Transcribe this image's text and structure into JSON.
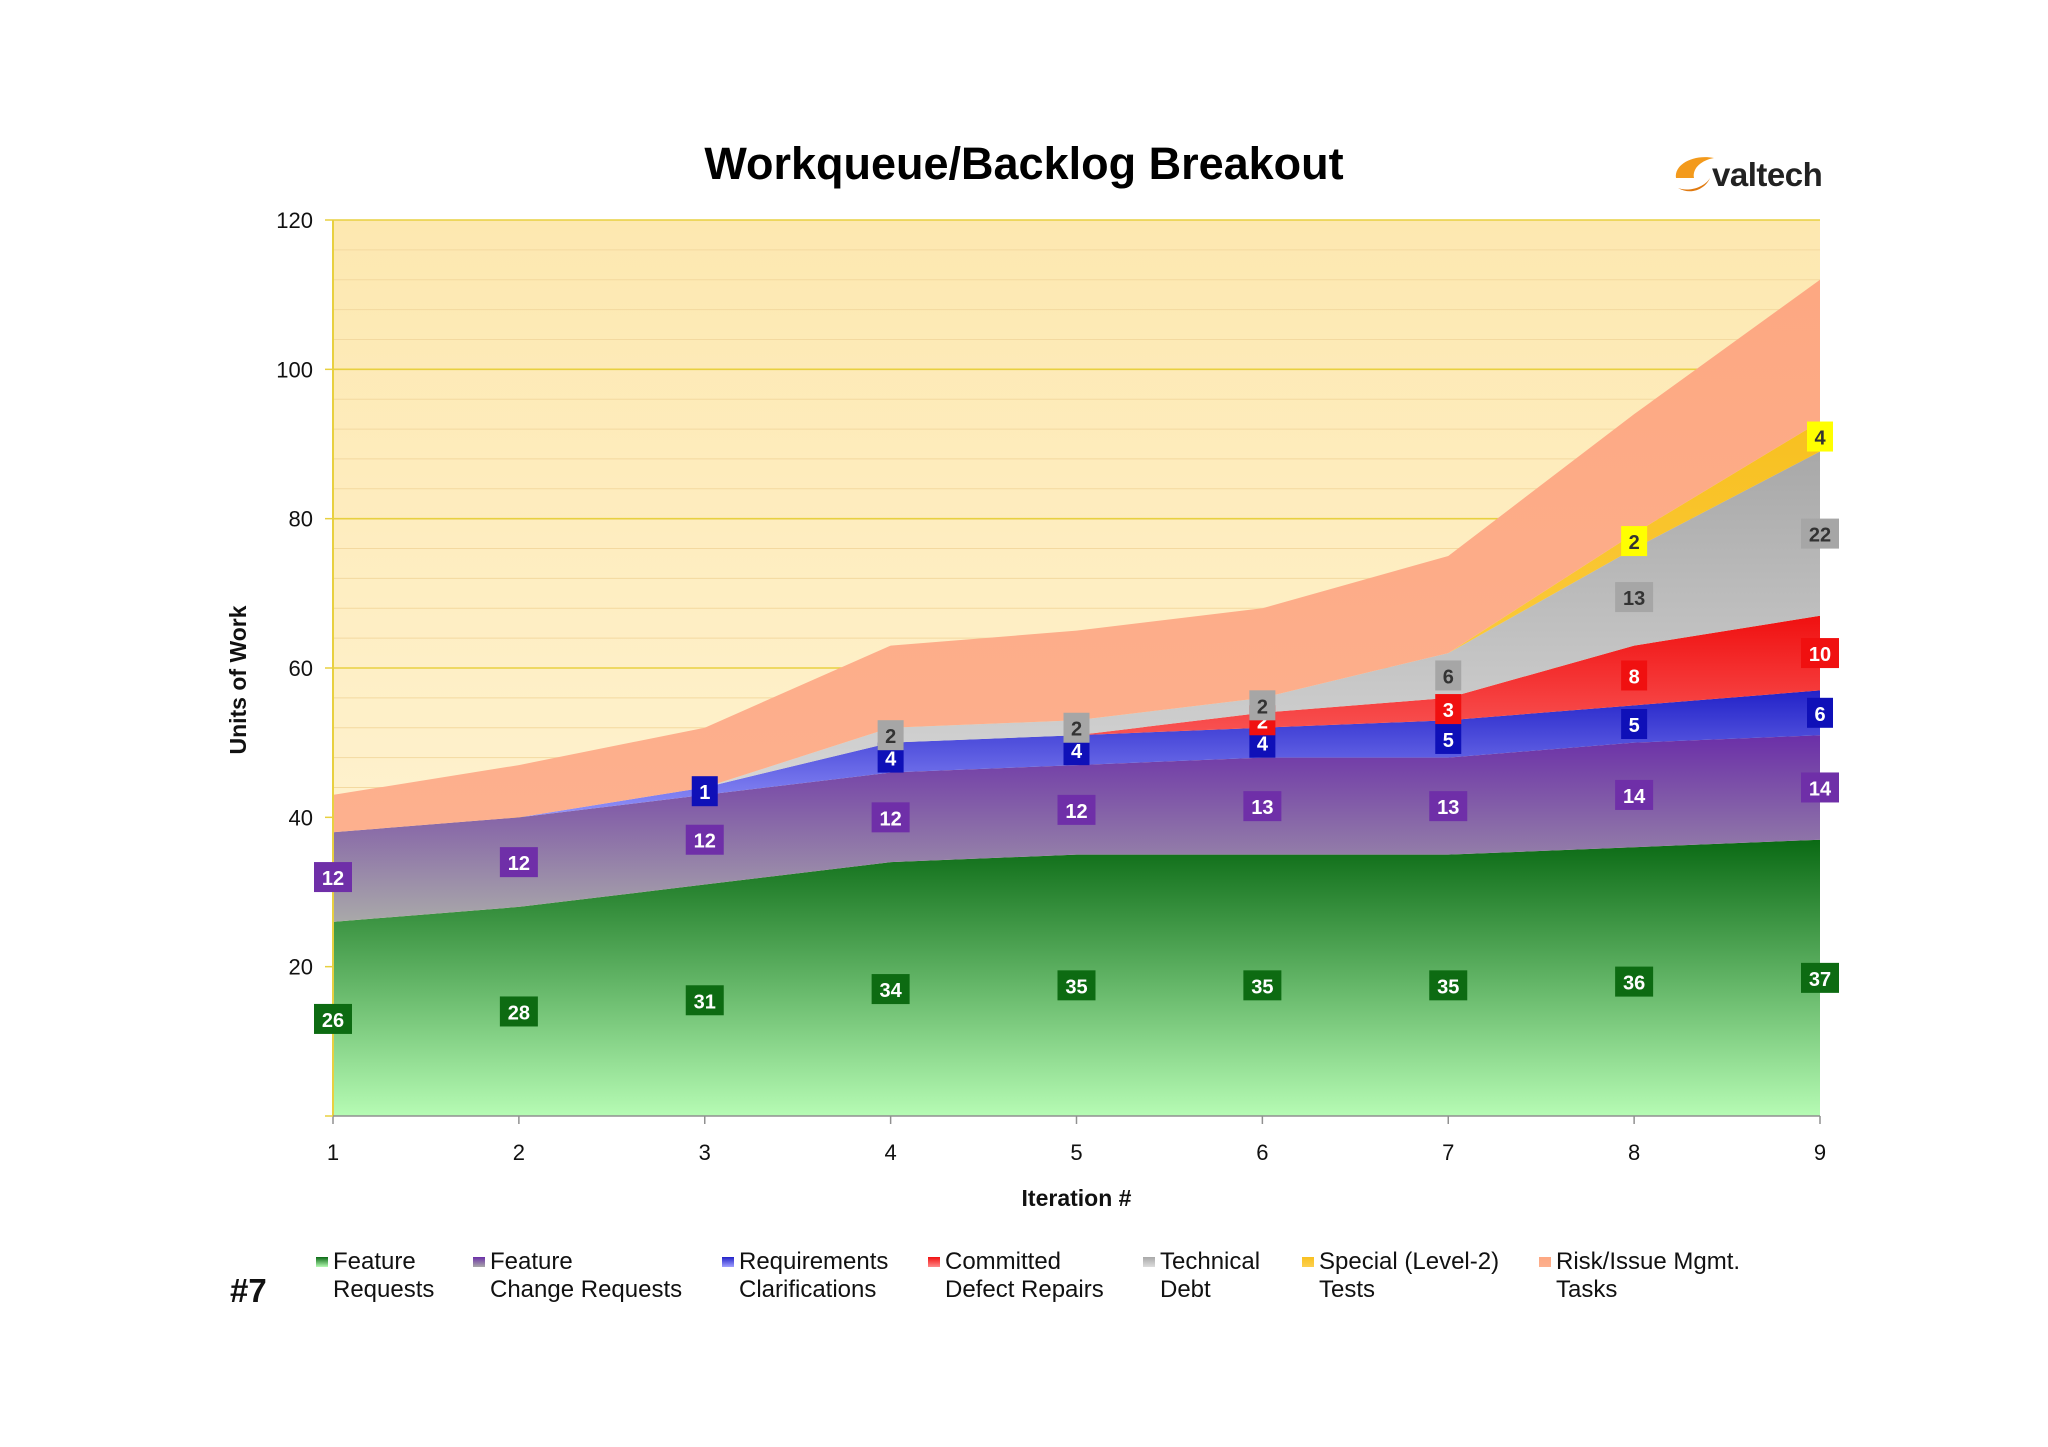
{
  "title": "Workqueue/Backlog Breakout",
  "logo_text": "valtech",
  "slide_number": "#7",
  "colors": {
    "plot_background_top": "#fde8b0",
    "plot_background_bottom": "#fff6dc",
    "axis_yellow": "#e8d040",
    "logo_orange": "#f39a1c"
  },
  "chart_data": {
    "type": "area",
    "stacked": true,
    "xlabel": "Iteration #",
    "ylabel": "Units of Work",
    "ylim": [
      0,
      120
    ],
    "y_ticks": [
      20,
      40,
      60,
      80,
      100,
      120
    ],
    "x": [
      1,
      2,
      3,
      4,
      5,
      6,
      7,
      8,
      9
    ],
    "grid": true,
    "legend_position": "bottom",
    "series": [
      {
        "name": "Feature\nRequests",
        "values": [
          26,
          28,
          31,
          34,
          35,
          35,
          35,
          36,
          37
        ],
        "color_top": "#0a6a14",
        "color_bottom": "#b6fbb4",
        "swatch": "#2e8a3a",
        "label_bg": "#0d6b12",
        "label_fg": "#ffffff",
        "labels": [
          "26",
          "28",
          "31",
          "34",
          "35",
          "35",
          "35",
          "36",
          "37"
        ]
      },
      {
        "name": "Feature\nChange Requests",
        "values": [
          12,
          12,
          12,
          12,
          12,
          13,
          13,
          14,
          14
        ],
        "color_top": "#6b2fa8",
        "color_bottom": "#a9a9a9",
        "swatch": "#7a55a8",
        "label_bg": "#6f2fa8",
        "label_fg": "#ffffff",
        "labels": [
          "12",
          "12",
          "12",
          "12",
          "12",
          "13",
          "13",
          "14",
          "14"
        ]
      },
      {
        "name": "Requirements\nClarifications",
        "values": [
          0,
          0,
          1,
          4,
          4,
          4,
          5,
          5,
          6
        ],
        "color_top": "#2222c8",
        "color_bottom": "#a0a0ff",
        "swatch": "#3a3ad8",
        "label_bg": "#0f10b8",
        "label_fg": "#ffffff",
        "labels": [
          "",
          "",
          "1",
          "4",
          "4",
          "4",
          "5",
          "5",
          "6"
        ]
      },
      {
        "name": "Committed\nDefect Repairs",
        "values": [
          0,
          0,
          0,
          0,
          0,
          2,
          3,
          8,
          10
        ],
        "color_top": "#f01010",
        "color_bottom": "#ff8a8a",
        "swatch": "#f03030",
        "label_bg": "#f01010",
        "label_fg": "#ffffff",
        "labels": [
          "",
          "",
          "",
          "",
          "",
          "2",
          "3",
          "8",
          "10"
        ]
      },
      {
        "name": "Technical\nDebt",
        "values": [
          0,
          0,
          0,
          2,
          2,
          2,
          6,
          13,
          22
        ],
        "color_top": "#a8a8a8",
        "color_bottom": "#dcdcdc",
        "swatch": "#b4b4b4",
        "label_bg": "#a6a6a6",
        "label_fg": "#333333",
        "labels": [
          "",
          "",
          "",
          "2",
          "2",
          "2",
          "6",
          "13",
          "22"
        ]
      },
      {
        "name": "Special (Level-2)\nTests",
        "values": [
          0,
          0,
          0,
          0,
          0,
          0,
          0,
          2,
          4
        ],
        "color_top": "#f8c020",
        "color_bottom": "#fcd050",
        "swatch": "#f8c838",
        "label_bg": "#ffff00",
        "label_fg": "#333333",
        "labels": [
          "",
          "",
          "",
          "",
          "",
          "",
          "",
          "2",
          "4"
        ]
      },
      {
        "name": "Risk/Issue Mgmt.\nTasks",
        "values": [
          5,
          7,
          8,
          11,
          12,
          12,
          13,
          16,
          19
        ],
        "color_top": "#fda882",
        "color_bottom": "#fdb08e",
        "swatch": "#fba888",
        "label_bg": "",
        "label_fg": "",
        "labels": []
      }
    ]
  }
}
